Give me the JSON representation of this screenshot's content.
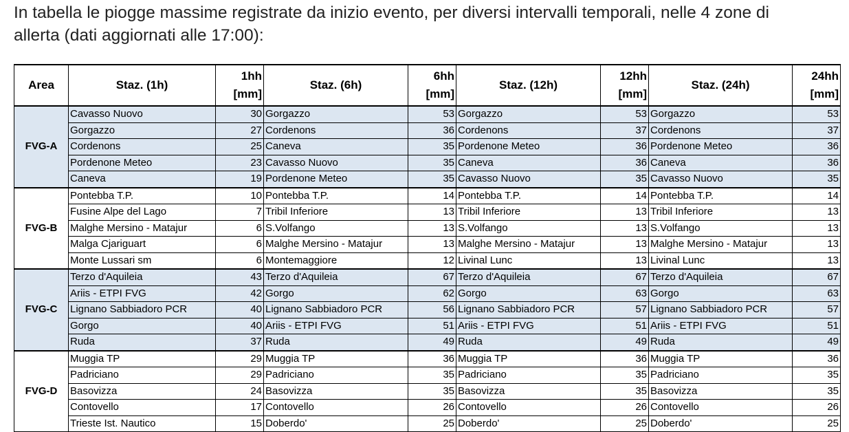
{
  "intro": {
    "lines": [
      "In tabella le piogge massime registrate da inizio evento, per diversi intervalli temporali, nelle 4 zone di",
      "allerta (dati aggiornati alle 17:00):"
    ]
  },
  "table": {
    "headers": [
      "Area",
      "Staz. (1h)",
      "1hh\n[mm]",
      "Staz. (6h)",
      "6hh\n[mm]",
      "Staz. (12h)",
      "12hh\n[mm]",
      "Staz. (24h)",
      "24hh\n[mm]"
    ],
    "groups": [
      {
        "area": "FVG-A",
        "background": "#dce6f1",
        "rows": [
          [
            "Cavasso Nuovo",
            30,
            "Gorgazzo",
            53,
            "Gorgazzo",
            53,
            "Gorgazzo",
            53
          ],
          [
            "Gorgazzo",
            27,
            "Cordenons",
            36,
            "Cordenons",
            37,
            "Cordenons",
            37
          ],
          [
            "Cordenons",
            25,
            "Caneva",
            35,
            "Pordenone Meteo",
            36,
            "Pordenone Meteo",
            36
          ],
          [
            "Pordenone Meteo",
            23,
            "Cavasso Nuovo",
            35,
            "Caneva",
            36,
            "Caneva",
            36
          ],
          [
            "Caneva",
            19,
            "Pordenone Meteo",
            35,
            "Cavasso Nuovo",
            35,
            "Cavasso Nuovo",
            35
          ]
        ]
      },
      {
        "area": "FVG-B",
        "background": "#ffffff",
        "rows": [
          [
            "Pontebba T.P.",
            10,
            "Pontebba T.P.",
            14,
            "Pontebba T.P.",
            14,
            "Pontebba T.P.",
            14
          ],
          [
            "Fusine Alpe del Lago",
            7,
            "Tribil Inferiore",
            13,
            "Tribil Inferiore",
            13,
            "Tribil Inferiore",
            13
          ],
          [
            "Malghe Mersino - Matajur",
            6,
            "S.Volfango",
            13,
            "S.Volfango",
            13,
            "S.Volfango",
            13
          ],
          [
            "Malga Cjariguart",
            6,
            "Malghe Mersino - Matajur",
            13,
            "Malghe Mersino - Matajur",
            13,
            "Malghe Mersino - Matajur",
            13
          ],
          [
            "Monte Lussari sm",
            6,
            "Montemaggiore",
            12,
            "Livinal Lunc",
            13,
            "Livinal Lunc",
            13
          ]
        ]
      },
      {
        "area": "FVG-C",
        "background": "#dce6f1",
        "rows": [
          [
            "Terzo d'Aquileia",
            43,
            "Terzo d'Aquileia",
            67,
            "Terzo d'Aquileia",
            67,
            "Terzo d'Aquileia",
            67
          ],
          [
            "Ariis - ETPI FVG",
            42,
            "Gorgo",
            62,
            "Gorgo",
            63,
            "Gorgo",
            63
          ],
          [
            "Lignano Sabbiadoro PCR",
            40,
            "Lignano Sabbiadoro PCR",
            56,
            "Lignano Sabbiadoro PCR",
            57,
            "Lignano Sabbiadoro PCR",
            57
          ],
          [
            "Gorgo",
            40,
            "Ariis - ETPI FVG",
            51,
            "Ariis - ETPI FVG",
            51,
            "Ariis - ETPI FVG",
            51
          ],
          [
            "Ruda",
            37,
            "Ruda",
            49,
            "Ruda",
            49,
            "Ruda",
            49
          ]
        ]
      },
      {
        "area": "FVG-D",
        "background": "#ffffff",
        "rows": [
          [
            "Muggia TP",
            29,
            "Muggia TP",
            36,
            "Muggia TP",
            36,
            "Muggia TP",
            36
          ],
          [
            "Padriciano",
            29,
            "Padriciano",
            35,
            "Padriciano",
            35,
            "Padriciano",
            35
          ],
          [
            "Basovizza",
            24,
            "Basovizza",
            35,
            "Basovizza",
            35,
            "Basovizza",
            35
          ],
          [
            "Contovello",
            17,
            "Contovello",
            26,
            "Contovello",
            26,
            "Contovello",
            26
          ],
          [
            "Trieste Ist. Nautico",
            15,
            "Doberdo'",
            25,
            "Doberdo'",
            25,
            "Doberdo'",
            25
          ]
        ]
      }
    ]
  }
}
